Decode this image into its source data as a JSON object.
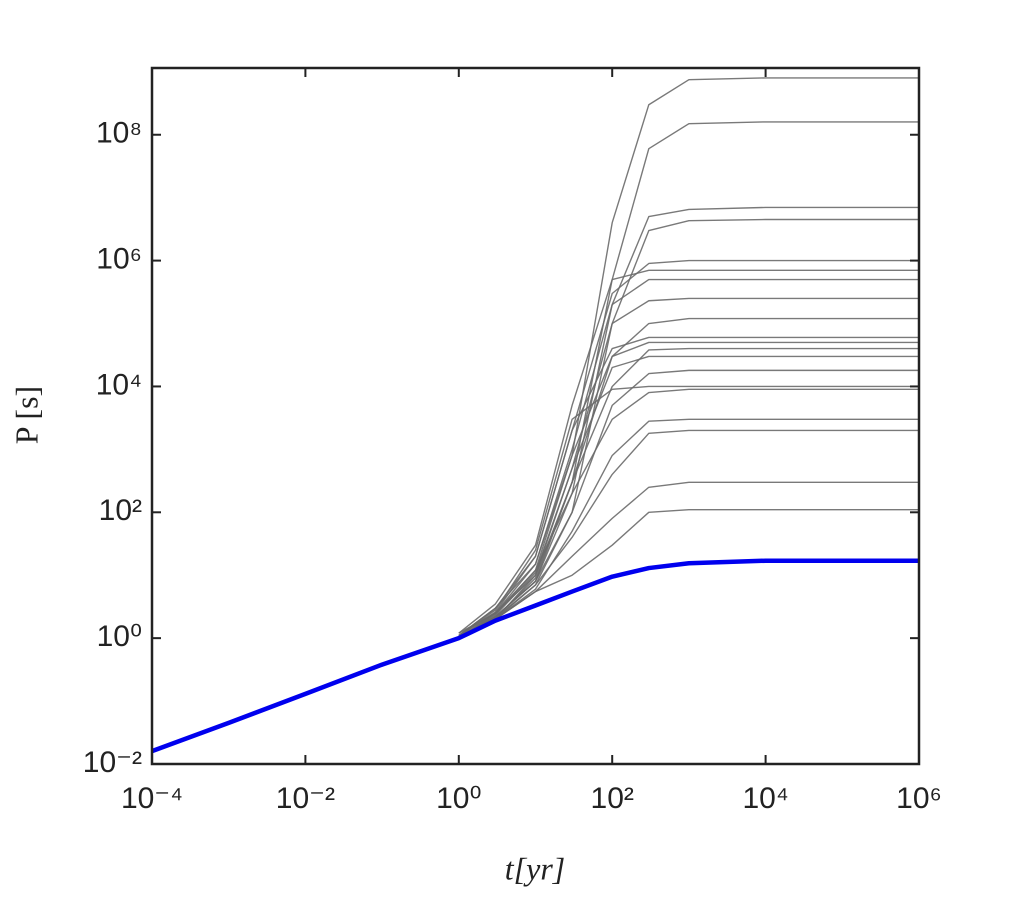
{
  "chart_data": {
    "type": "line",
    "xlabel": "t[yr]",
    "ylabel": "P [s]",
    "xscale": "log",
    "yscale": "log",
    "xlim": [
      0.0001,
      1000000
    ],
    "ylim": [
      0.01,
      1150000000
    ],
    "xticks": [
      {
        "value": 0.0001,
        "label": "10⁻⁴"
      },
      {
        "value": 0.01,
        "label": "10⁻²"
      },
      {
        "value": 1,
        "label": "10⁰"
      },
      {
        "value": 100,
        "label": "10²"
      },
      {
        "value": 10000,
        "label": "10⁴"
      },
      {
        "value": 1000000,
        "label": "10⁶"
      }
    ],
    "yticks": [
      {
        "value": 0.01,
        "label": "10⁻²"
      },
      {
        "value": 1,
        "label": "10⁰"
      },
      {
        "value": 100,
        "label": "10²"
      },
      {
        "value": 10000,
        "label": "10⁴"
      },
      {
        "value": 1000000,
        "label": "10⁶"
      },
      {
        "value": 100000000,
        "label": "10⁸"
      }
    ],
    "x": [
      0.0001,
      0.001,
      0.01,
      0.1,
      1,
      3,
      10,
      30,
      100,
      300,
      1000,
      10000,
      100000,
      1000000
    ],
    "series": [
      {
        "color": "#6a6a6a",
        "values": [
          null,
          null,
          null,
          null,
          1.1,
          3,
          15,
          800,
          4000000,
          300000000,
          750000000,
          800000000,
          800000000,
          800000000
        ]
      },
      {
        "color": "#6a6a6a",
        "values": [
          null,
          null,
          null,
          null,
          1.2,
          2.5,
          10,
          300,
          500000,
          60000000,
          150000000,
          160000000,
          160000000,
          160000000
        ]
      },
      {
        "color": "#6a6a6a",
        "values": [
          null,
          null,
          null,
          null,
          1.1,
          2.5,
          12,
          200,
          200000,
          5000000,
          6500000,
          7000000,
          7000000,
          7000000
        ]
      },
      {
        "color": "#6a6a6a",
        "values": [
          null,
          null,
          null,
          null,
          1.0,
          2.2,
          8,
          100,
          100000,
          3000000,
          4300000,
          4500000,
          4500000,
          4500000
        ]
      },
      {
        "color": "#6a6a6a",
        "values": [
          null,
          null,
          null,
          null,
          1.1,
          3,
          20,
          2000,
          300000,
          900000,
          1000000,
          1000000,
          1000000,
          1000000
        ]
      },
      {
        "color": "#6a6a6a",
        "values": [
          null,
          null,
          null,
          null,
          1.2,
          3.5,
          30,
          5000,
          500000,
          700000,
          700000,
          700000,
          700000,
          700000
        ]
      },
      {
        "color": "#6a6a6a",
        "values": [
          null,
          null,
          null,
          null,
          1.0,
          2.5,
          15,
          1000,
          200000,
          500000,
          500000,
          500000,
          500000,
          500000
        ]
      },
      {
        "color": "#6a6a6a",
        "values": [
          null,
          null,
          null,
          null,
          1.1,
          2,
          10,
          500,
          100000,
          230000,
          250000,
          250000,
          250000,
          250000
        ]
      },
      {
        "color": "#6a6a6a",
        "values": [
          null,
          null,
          null,
          null,
          1.0,
          2.2,
          8,
          300,
          30000,
          100000,
          120000,
          120000,
          120000,
          120000
        ]
      },
      {
        "color": "#6a6a6a",
        "values": [
          null,
          null,
          null,
          null,
          1.1,
          2.6,
          20,
          2000,
          40000,
          60000,
          60000,
          60000,
          60000,
          60000
        ]
      },
      {
        "color": "#6a6a6a",
        "values": [
          null,
          null,
          null,
          null,
          1.0,
          2.4,
          12,
          800,
          30000,
          50000,
          50000,
          50000,
          50000,
          50000
        ]
      },
      {
        "color": "#6a6a6a",
        "values": [
          null,
          null,
          null,
          null,
          1.1,
          2.1,
          9,
          300,
          10000,
          38000,
          40000,
          40000,
          40000,
          40000
        ]
      },
      {
        "color": "#6a6a6a",
        "values": [
          null,
          null,
          null,
          null,
          1.0,
          2.3,
          11,
          500,
          20000,
          30000,
          30000,
          30000,
          30000,
          30000
        ]
      },
      {
        "color": "#6a6a6a",
        "values": [
          null,
          null,
          null,
          null,
          1.0,
          2,
          7,
          100,
          5000,
          16000,
          18000,
          18000,
          18000,
          18000
        ]
      },
      {
        "color": "#6a6a6a",
        "values": [
          null,
          null,
          null,
          null,
          1.1,
          2.8,
          25,
          3000,
          9000,
          10000,
          10000,
          10000,
          10000,
          10000
        ]
      },
      {
        "color": "#6a6a6a",
        "values": [
          null,
          null,
          null,
          null,
          1.0,
          2.2,
          8,
          200,
          3000,
          8000,
          9000,
          9000,
          9000,
          9000
        ]
      },
      {
        "color": "#6a6a6a",
        "values": [
          null,
          null,
          null,
          null,
          1.0,
          2,
          6,
          50,
          800,
          2800,
          3000,
          3000,
          3000,
          3000
        ]
      },
      {
        "color": "#6a6a6a",
        "values": [
          null,
          null,
          null,
          null,
          1.0,
          2.1,
          7,
          40,
          400,
          1800,
          2000,
          2000,
          2000,
          2000
        ]
      },
      {
        "color": "#6a6a6a",
        "values": [
          null,
          null,
          null,
          null,
          1.0,
          2,
          5.5,
          20,
          80,
          250,
          300,
          300,
          300,
          300
        ]
      },
      {
        "color": "#6a6a6a",
        "values": [
          null,
          null,
          null,
          null,
          1.0,
          2,
          5.5,
          10,
          30,
          100,
          110,
          110,
          110,
          110
        ]
      },
      {
        "color": "#0000ee",
        "values": [
          0.016,
          0.045,
          0.13,
          0.38,
          1.0,
          1.9,
          3.3,
          5.5,
          9.5,
          13,
          15.5,
          17,
          17,
          17
        ]
      }
    ]
  }
}
